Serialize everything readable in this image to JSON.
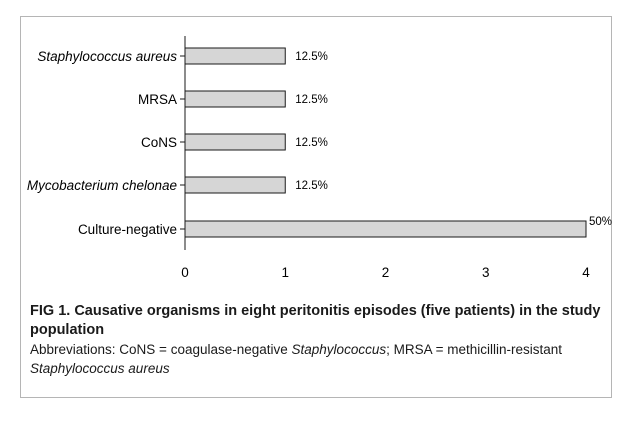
{
  "chart_data": {
    "type": "bar",
    "orientation": "horizontal",
    "categories": [
      "Staphylococcus aureus",
      "MRSA",
      "CoNS",
      "Mycobacterium chelonae",
      "Culture-negative"
    ],
    "italic_categories": [
      true,
      false,
      false,
      true,
      false
    ],
    "values": [
      1,
      1,
      1,
      1,
      4
    ],
    "value_labels": [
      "12.5%",
      "12.5%",
      "12.5%",
      "12.5%",
      "50%"
    ],
    "xlim": [
      0,
      4
    ],
    "xticks": [
      "0",
      "1",
      "2",
      "3",
      "4"
    ],
    "grid": false,
    "bar_color": "#d6d6d6",
    "bar_edge_color": "#1a1a1a"
  },
  "caption": {
    "title": "FIG 1.  Causative organisms in eight peritonitis episodes (five patients) in the study population",
    "abbrev_parts": [
      {
        "text": "Abbreviations: CoNS = coagulase-negative ",
        "italic": false
      },
      {
        "text": "Staphylococcus",
        "italic": true
      },
      {
        "text": "; MRSA = methicillin-resistant ",
        "italic": false
      },
      {
        "text": "Staphylococcus aureus",
        "italic": true
      }
    ]
  }
}
